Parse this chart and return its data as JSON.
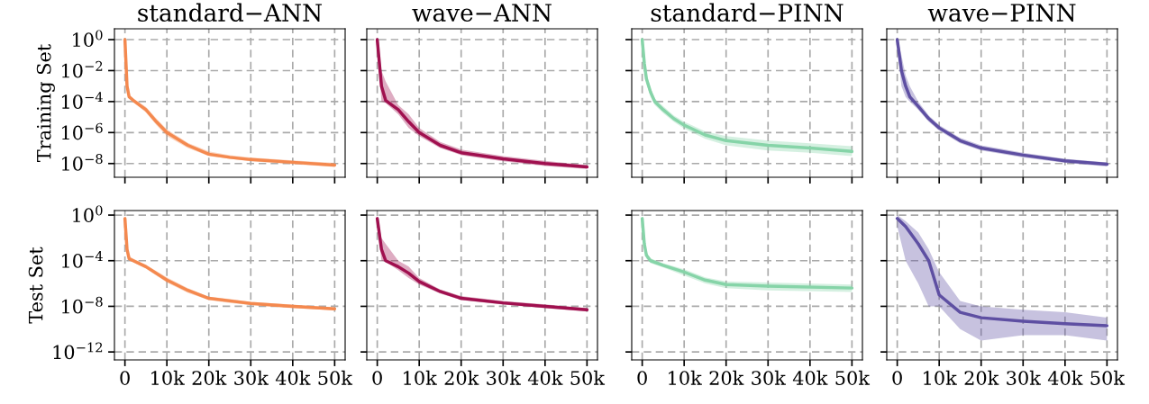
{
  "chart_data": [
    {
      "type": "line",
      "title": "standard−ANN",
      "ylabel": "Training Set",
      "x": [
        0,
        500,
        1000,
        2000,
        5000,
        7500,
        10000,
        15000,
        20000,
        25000,
        30000,
        40000,
        50000
      ],
      "series": [
        {
          "color": "#f4894f",
          "values": [
            1,
            0.001,
            0.0002,
            0.00012,
            3e-05,
            5e-06,
            1e-06,
            1.5e-07,
            4e-08,
            2.5e-08,
            1.8e-08,
            1.2e-08,
            8e-09
          ],
          "lower": [
            0.8,
            0.0006,
            0.00015,
            9e-05,
            2e-05,
            3e-06,
            6e-07,
            1e-07,
            3e-08,
            2e-08,
            1.4e-08,
            9e-09,
            6e-09
          ],
          "upper": [
            1.2,
            0.002,
            0.0003,
            0.00016,
            4.5e-05,
            8e-06,
            1.6e-06,
            2.2e-07,
            6e-08,
            3.5e-08,
            2.5e-08,
            1.6e-08,
            1.1e-08
          ]
        }
      ],
      "xlim": [
        -2500,
        52500
      ],
      "xticks": [
        {
          "value": 0,
          "label": null
        },
        {
          "value": 10000,
          "label": null
        },
        {
          "value": 20000,
          "label": null
        },
        {
          "value": 30000,
          "label": null
        },
        {
          "value": 40000,
          "label": null
        },
        {
          "value": 50000,
          "label": null
        }
      ],
      "ylim": [
        1.3e-09,
        5
      ],
      "yticks": [
        {
          "value": 1,
          "label": "10$^{0}$"
        },
        {
          "value": 0.01,
          "label": "10$^{−2}$"
        },
        {
          "value": 0.0001,
          "label": "10$^{−4}$"
        },
        {
          "value": 1e-06,
          "label": "10$^{−6}$"
        },
        {
          "value": 1e-08,
          "label": "10$^{−8}$"
        }
      ],
      "log": true,
      "grid": true,
      "tick_labels": "y"
    },
    {
      "type": "line",
      "title": "wave−ANN",
      "x": [
        0,
        1000,
        2000,
        5000,
        7500,
        10000,
        15000,
        20000,
        30000,
        40000,
        50000
      ],
      "series": [
        {
          "color": "#a0104f",
          "values": [
            1,
            0.001,
            0.00012,
            3e-05,
            5e-06,
            1e-06,
            1.5e-07,
            5e-08,
            2e-08,
            1e-08,
            6e-09
          ],
          "lower": [
            0.5,
            0.0001,
            8e-05,
            1.5e-05,
            2e-06,
            6e-07,
            1e-07,
            3.5e-08,
            1.4e-08,
            7e-09,
            4.5e-09
          ],
          "upper": [
            1.5,
            0.01,
            0.002,
            6e-05,
            1.5e-05,
            2e-06,
            2.5e-07,
            8e-08,
            3e-08,
            1.5e-08,
            8e-09
          ]
        }
      ],
      "xlim": [
        -2500,
        52500
      ],
      "xticks": [
        {
          "value": 0,
          "label": null
        },
        {
          "value": 10000,
          "label": null
        },
        {
          "value": 20000,
          "label": null
        },
        {
          "value": 30000,
          "label": null
        },
        {
          "value": 40000,
          "label": null
        },
        {
          "value": 50000,
          "label": null
        }
      ],
      "ylim": [
        1.3e-09,
        5
      ],
      "yticks": [
        {
          "value": 1,
          "label": null
        },
        {
          "value": 0.01,
          "label": null
        },
        {
          "value": 0.0001,
          "label": null
        },
        {
          "value": 1e-06,
          "label": null
        },
        {
          "value": 1e-08,
          "label": null
        }
      ],
      "log": true,
      "grid": true,
      "tick_labels": false
    },
    {
      "type": "line",
      "title": "standard−PINN",
      "x": [
        0,
        500,
        1000,
        2000,
        3000,
        5000,
        7500,
        10000,
        15000,
        20000,
        30000,
        40000,
        50000
      ],
      "series": [
        {
          "color": "#86d4a8",
          "values": [
            1,
            0.03,
            0.003,
            0.0004,
            0.0001,
            3e-05,
            8e-06,
            3e-06,
            7e-07,
            3e-07,
            1.5e-07,
            1e-07,
            6e-08
          ],
          "lower": [
            0.6,
            0.015,
            0.0015,
            0.0002,
            6e-05,
            1.8e-05,
            5e-06,
            1.8e-06,
            4e-07,
            1.5e-07,
            7e-08,
            5e-08,
            3e-08
          ],
          "upper": [
            1.5,
            0.06,
            0.006,
            0.0007,
            0.00016,
            5e-05,
            1.3e-05,
            5e-06,
            1.2e-06,
            6e-07,
            3e-07,
            2e-07,
            1.3e-07
          ]
        }
      ],
      "xlim": [
        -2500,
        52500
      ],
      "xticks": [
        {
          "value": 0,
          "label": null
        },
        {
          "value": 10000,
          "label": null
        },
        {
          "value": 20000,
          "label": null
        },
        {
          "value": 30000,
          "label": null
        },
        {
          "value": 40000,
          "label": null
        },
        {
          "value": 50000,
          "label": null
        }
      ],
      "ylim": [
        1.3e-09,
        5
      ],
      "yticks": [
        {
          "value": 1,
          "label": null
        },
        {
          "value": 0.01,
          "label": null
        },
        {
          "value": 0.0001,
          "label": null
        },
        {
          "value": 1e-06,
          "label": null
        },
        {
          "value": 1e-08,
          "label": null
        }
      ],
      "log": true,
      "grid": true,
      "tick_labels": false
    },
    {
      "type": "line",
      "title": "wave−PINN",
      "x": [
        0,
        1000,
        2000,
        3000,
        5000,
        7500,
        10000,
        15000,
        20000,
        30000,
        40000,
        50000
      ],
      "series": [
        {
          "color": "#5e4fa2",
          "values": [
            1,
            0.01,
            0.001,
            0.0002,
            5e-05,
            8e-06,
            2e-06,
            3e-07,
            1e-07,
            3.5e-08,
            1.5e-08,
            9e-09
          ],
          "lower": [
            0.5,
            0.001,
            0.0002,
            0.0001,
            3e-05,
            5e-06,
            1.3e-06,
            2e-07,
            7e-08,
            2.5e-08,
            1.1e-08,
            6.5e-09
          ],
          "upper": [
            1.5,
            0.1,
            0.005,
            0.001,
            0.0001,
            1.3e-05,
            3e-06,
            4.5e-07,
            1.5e-07,
            5e-08,
            2e-08,
            1.2e-08
          ]
        }
      ],
      "xlim": [
        -2500,
        52500
      ],
      "xticks": [
        {
          "value": 0,
          "label": null
        },
        {
          "value": 10000,
          "label": null
        },
        {
          "value": 20000,
          "label": null
        },
        {
          "value": 30000,
          "label": null
        },
        {
          "value": 40000,
          "label": null
        },
        {
          "value": 50000,
          "label": null
        }
      ],
      "ylim": [
        1.3e-09,
        5
      ],
      "yticks": [
        {
          "value": 1,
          "label": null
        },
        {
          "value": 0.01,
          "label": null
        },
        {
          "value": 0.0001,
          "label": null
        },
        {
          "value": 1e-06,
          "label": null
        },
        {
          "value": 1e-08,
          "label": null
        }
      ],
      "log": true,
      "grid": true,
      "tick_labels": false
    },
    {
      "type": "line",
      "ylabel": "Test Set",
      "x": [
        0,
        500,
        1000,
        2000,
        5000,
        10000,
        15000,
        20000,
        25000,
        30000,
        40000,
        50000
      ],
      "series": [
        {
          "color": "#f4894f",
          "values": [
            0.5,
            0.001,
            0.00015,
            0.0001,
            3e-05,
            2e-06,
            2.5e-07,
            5e-08,
            3e-08,
            1.8e-08,
            1e-08,
            6e-09
          ],
          "lower": [
            0.3,
            0.0005,
            0.0001,
            7e-05,
            2e-05,
            1.2e-06,
            1.5e-07,
            3.5e-08,
            2e-08,
            1.3e-08,
            7e-09,
            4.5e-09
          ],
          "upper": [
            0.8,
            0.002,
            0.00025,
            0.00015,
            4.5e-05,
            3.5e-06,
            4e-07,
            7e-08,
            4.5e-08,
            2.5e-08,
            1.4e-08,
            8e-09
          ]
        }
      ],
      "xlim": [
        -2500,
        52500
      ],
      "xticks": [
        0,
        {
          "value": 10000,
          "label": "10k"
        },
        {
          "value": 20000,
          "label": "20k"
        },
        {
          "value": 30000,
          "label": "30k"
        },
        {
          "value": 40000,
          "label": "40k"
        },
        {
          "value": 50000,
          "label": "50k"
        }
      ],
      "ylim": [
        2e-13,
        2.5
      ],
      "yticks": [
        {
          "value": 1,
          "label": "10$^{0}$"
        },
        {
          "value": 0.0001,
          "label": "10$^{−4}$"
        },
        {
          "value": 1e-08,
          "label": "10$^{−8}$"
        },
        {
          "value": 1e-12,
          "label": "10$^{−12}$"
        }
      ],
      "log": true,
      "grid": true
    },
    {
      "type": "line",
      "x": [
        0,
        1000,
        2000,
        5000,
        7500,
        10000,
        15000,
        20000,
        30000,
        40000,
        50000
      ],
      "series": [
        {
          "color": "#a0104f",
          "values": [
            0.5,
            0.001,
            0.0001,
            3e-05,
            8e-06,
            1.5e-06,
            2e-07,
            5e-08,
            2e-08,
            1e-08,
            5e-09
          ],
          "lower": [
            0.3,
            0.0001,
            8e-05,
            1.5e-05,
            3e-06,
            8e-07,
            1.3e-07,
            3.5e-08,
            1.4e-08,
            7e-09,
            3.5e-09
          ],
          "upper": [
            0.8,
            0.01,
            0.003,
            0.0001,
            3e-05,
            3e-06,
            3e-07,
            8e-08,
            3e-08,
            1.5e-08,
            7e-09
          ]
        }
      ],
      "xlim": [
        -2500,
        52500
      ],
      "xticks": [
        0,
        {
          "value": 10000,
          "label": "10k"
        },
        {
          "value": 20000,
          "label": "20k"
        },
        {
          "value": 30000,
          "label": "30k"
        },
        {
          "value": 40000,
          "label": "40k"
        },
        {
          "value": 50000,
          "label": "50k"
        }
      ],
      "ylim": [
        2e-13,
        2.5
      ],
      "yticks": [
        {
          "value": 1,
          "label": null
        },
        {
          "value": 0.0001,
          "label": null
        },
        {
          "value": 1e-08,
          "label": null
        },
        {
          "value": 1e-12,
          "label": null
        }
      ],
      "log": true,
      "grid": true,
      "tick_labels": "x"
    },
    {
      "type": "line",
      "x": [
        0,
        500,
        1000,
        2000,
        5000,
        10000,
        15000,
        20000,
        30000,
        50000
      ],
      "series": [
        {
          "color": "#86d4a8",
          "values": [
            0.5,
            0.003,
            0.0003,
            0.0001,
            4e-05,
            1e-05,
            2e-06,
            8e-07,
            6e-07,
            4e-07
          ],
          "lower": [
            0.3,
            0.0015,
            0.00015,
            6e-05,
            2.5e-05,
            5e-06,
            1e-06,
            4e-07,
            2.5e-07,
            1.8e-07
          ],
          "upper": [
            0.8,
            0.006,
            0.0006,
            0.00016,
            6e-05,
            1.8e-05,
            3.5e-06,
            1.5e-06,
            1.2e-06,
            8e-07
          ]
        }
      ],
      "xlim": [
        -2500,
        52500
      ],
      "xticks": [
        0,
        {
          "value": 10000,
          "label": "10k"
        },
        {
          "value": 20000,
          "label": "20k"
        },
        {
          "value": 30000,
          "label": "30k"
        },
        {
          "value": 40000,
          "label": "40k"
        },
        {
          "value": 50000,
          "label": "50k"
        }
      ],
      "ylim": [
        2e-13,
        2.5
      ],
      "yticks": [
        {
          "value": 1,
          "label": null
        },
        {
          "value": 0.0001,
          "label": null
        },
        {
          "value": 1e-08,
          "label": null
        },
        {
          "value": 1e-12,
          "label": null
        }
      ],
      "log": true,
      "grid": true,
      "tick_labels": "x"
    },
    {
      "type": "line",
      "x": [
        0,
        2000,
        5000,
        7500,
        10000,
        15000,
        20000,
        30000,
        40000,
        50000
      ],
      "series": [
        {
          "color": "#5e4fa2",
          "values": [
            0.5,
            0.1,
            0.003,
            0.0001,
            1e-07,
            3e-09,
            1e-09,
            5e-10,
            3e-10,
            2e-10
          ],
          "lower": [
            0.1,
            0.0001,
            1e-06,
            1e-08,
            1e-08,
            1e-10,
            1e-11,
            3e-11,
            3e-11,
            1e-11
          ],
          "upper": [
            1,
            0.3,
            0.03,
            0.001,
            1e-05,
            3e-08,
            1e-08,
            5e-09,
            3e-09,
            1e-09
          ]
        }
      ],
      "xlim": [
        -2500,
        52500
      ],
      "xticks": [
        0,
        {
          "value": 10000,
          "label": "10k"
        },
        {
          "value": 20000,
          "label": "20k"
        },
        {
          "value": 30000,
          "label": "30k"
        },
        {
          "value": 40000,
          "label": "40k"
        },
        {
          "value": 50000,
          "label": "50k"
        }
      ],
      "ylim": [
        2e-13,
        2.5
      ],
      "yticks": [
        {
          "value": 1,
          "label": null
        },
        {
          "value": 0.0001,
          "label": null
        },
        {
          "value": 1e-08,
          "label": null
        },
        {
          "value": 1e-12,
          "label": null
        }
      ],
      "log": true,
      "grid": true,
      "tick_labels": "x"
    }
  ]
}
